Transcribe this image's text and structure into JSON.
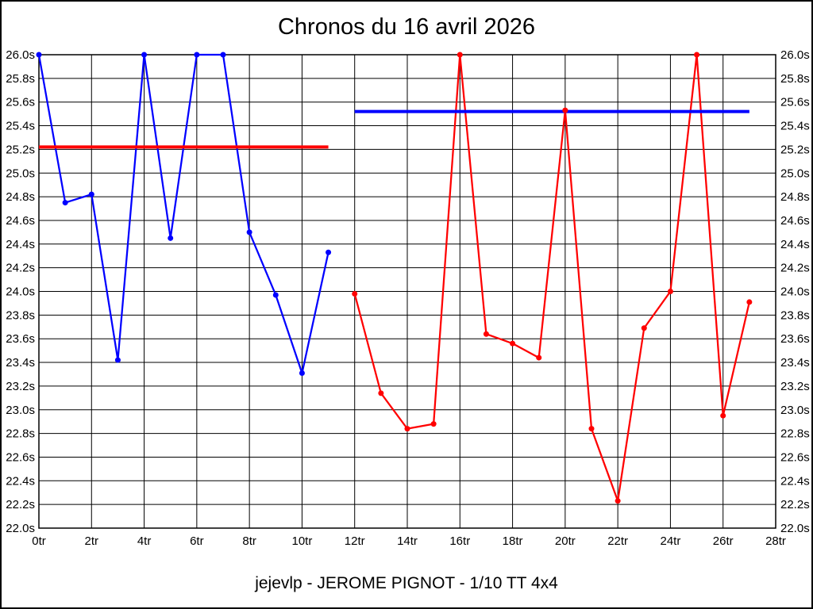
{
  "title": "Chronos du 16 avril 2026",
  "footer": "jejevlp - JEROME PIGNOT - 1/10 TT 4x4",
  "colors": {
    "background": "#ffffff",
    "grid": "#000000",
    "text": "#000000",
    "run1": "#0000ff",
    "run2": "#ff0000"
  },
  "chart_data": {
    "type": "line",
    "title": "Chronos du 16 avril 2026",
    "subtitle": "jejevlp - JEROME PIGNOT - 1/10 TT 4x4",
    "xlabel": "",
    "ylabel": "",
    "x_unit": "tr",
    "y_unit": "s",
    "xlim": [
      0,
      28
    ],
    "ylim": [
      22.0,
      26.0
    ],
    "x_tick_step": 2,
    "y_tick_step": 0.2,
    "y_tick_decimals": 1,
    "grid": true,
    "legend_position": "none",
    "series": [
      {
        "name": "run1-blue-laps",
        "color": "#0000ff",
        "x": [
          0,
          1,
          2,
          3,
          4,
          5,
          6,
          7,
          8,
          9,
          10,
          11
        ],
        "values": [
          26.0,
          24.75,
          24.82,
          23.42,
          26.0,
          24.45,
          26.0,
          26.0,
          24.5,
          23.97,
          23.31,
          24.33
        ]
      },
      {
        "name": "run2-red-laps",
        "color": "#ff0000",
        "x": [
          12,
          13,
          14,
          15,
          16,
          17,
          18,
          19,
          20,
          21,
          22,
          23,
          24,
          25,
          26,
          27
        ],
        "values": [
          23.98,
          23.14,
          22.84,
          22.88,
          26.0,
          23.64,
          23.56,
          23.44,
          25.53,
          22.84,
          22.23,
          23.69,
          24.0,
          26.0,
          22.95,
          23.91
        ]
      }
    ],
    "reference_lines": [
      {
        "name": "run1-reference",
        "color": "#ff0000",
        "value": 25.22,
        "x_start": 0,
        "x_end": 11
      },
      {
        "name": "run2-reference",
        "color": "#0000ff",
        "value": 25.52,
        "x_start": 12,
        "x_end": 27
      }
    ]
  }
}
